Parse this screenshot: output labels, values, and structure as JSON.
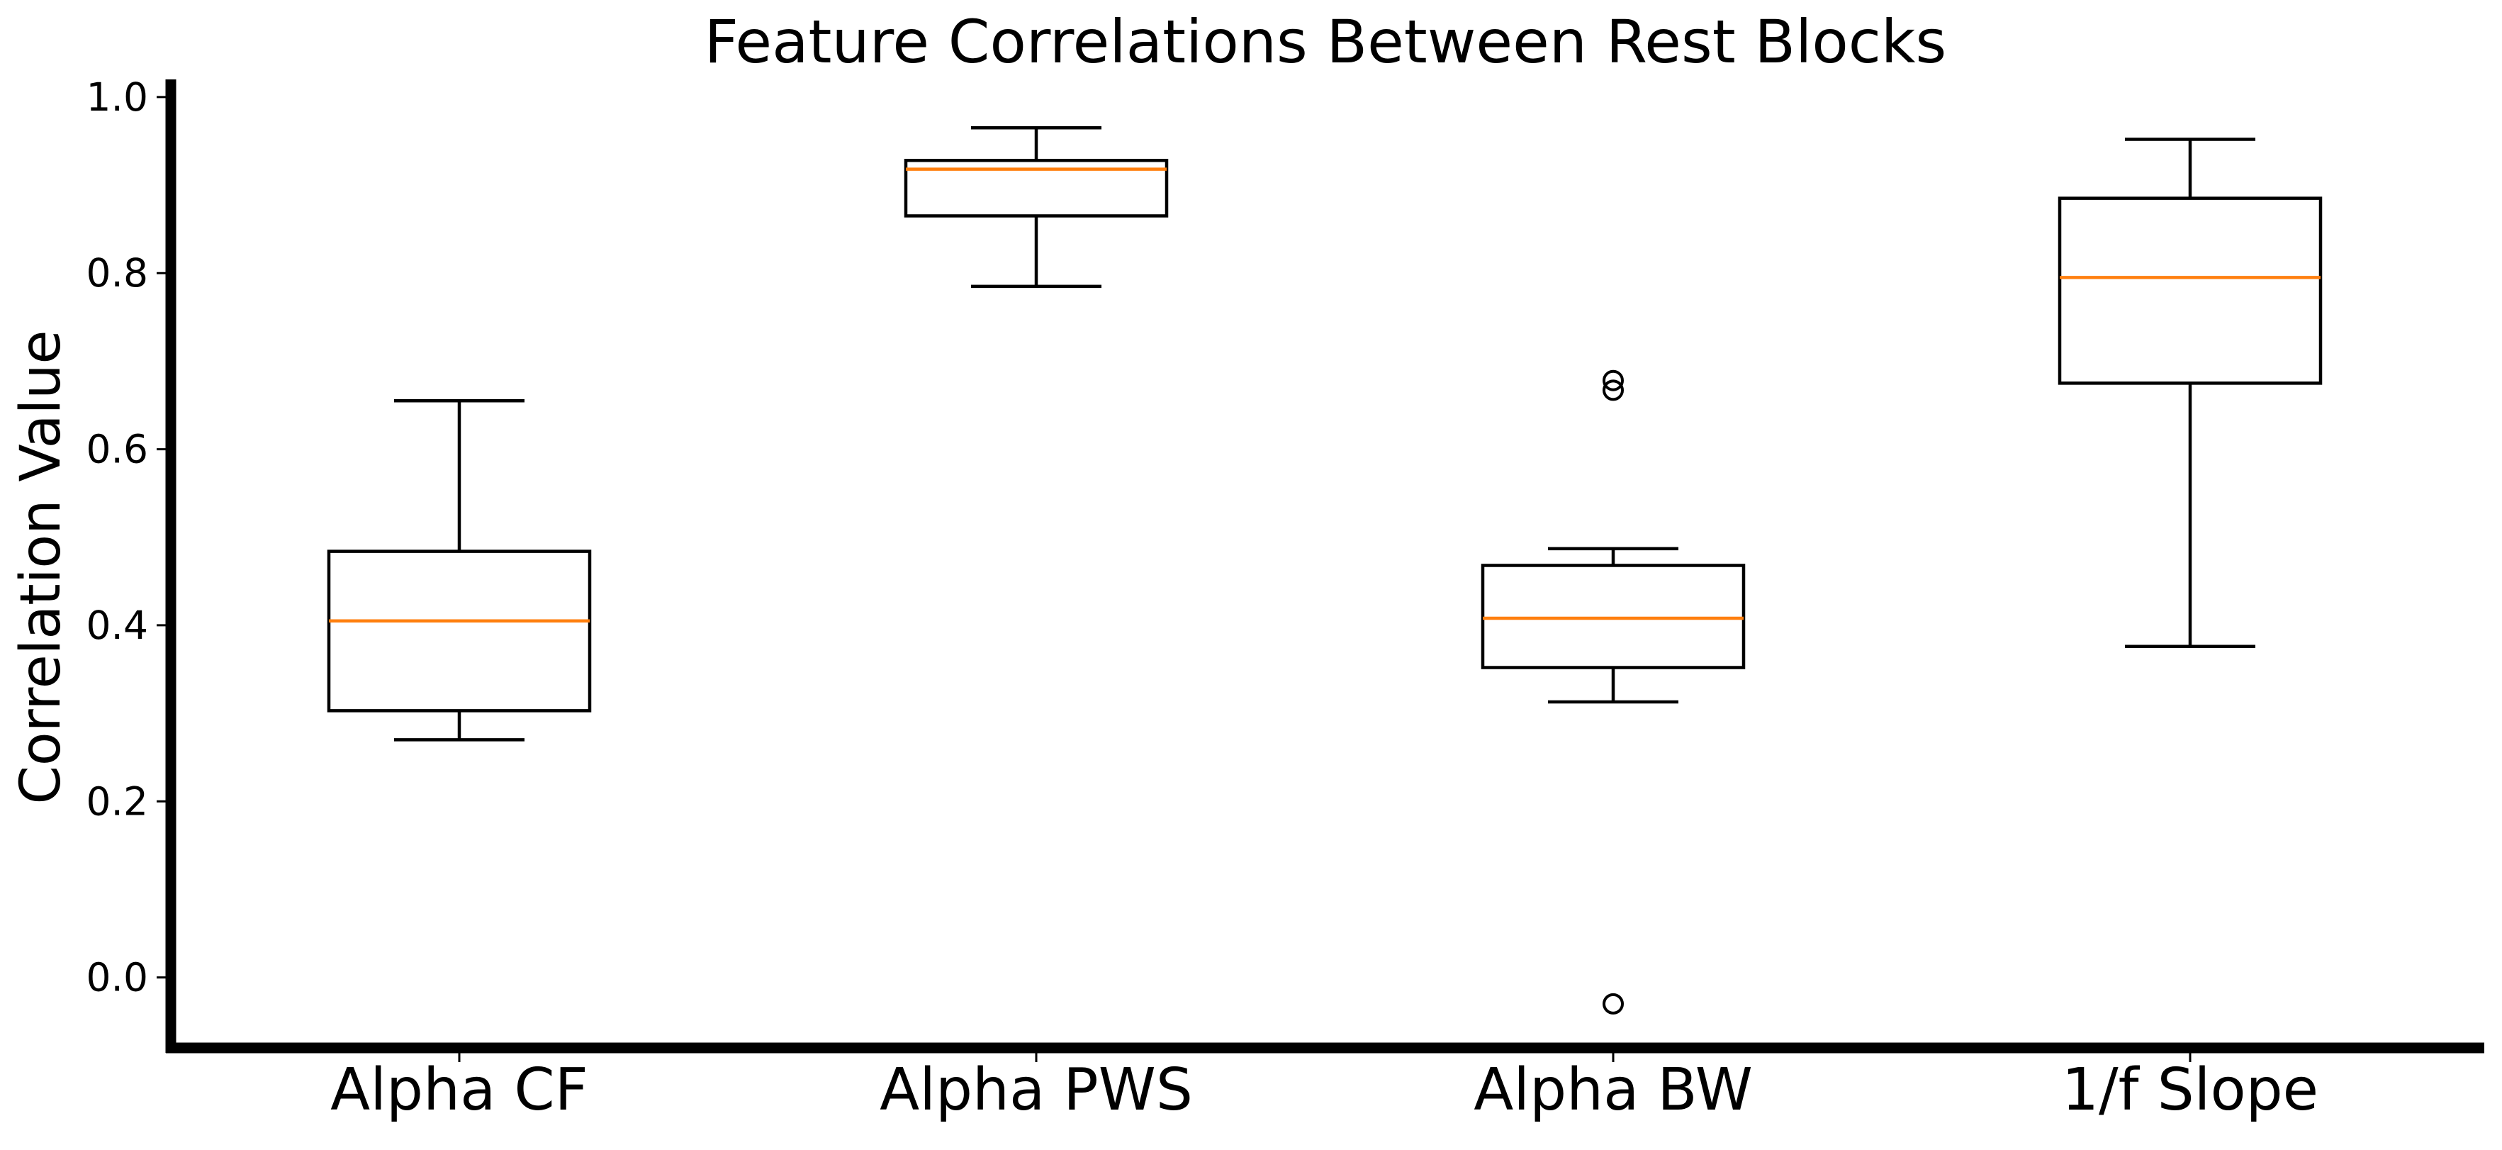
{
  "chart_data": {
    "type": "box",
    "title": "Feature Correlations Between Rest Blocks",
    "xlabel": "",
    "ylabel": "Correlation Value",
    "ylim": [
      -0.08,
      1.02
    ],
    "yticks": [
      0.0,
      0.2,
      0.4,
      0.6,
      0.8,
      1.0
    ],
    "ytick_labels": [
      "0.0",
      "0.2",
      "0.4",
      "0.6",
      "0.8",
      "1.0"
    ],
    "categories": [
      "Alpha CF",
      "Alpha PWS",
      "Alpha BW",
      "1/f Slope"
    ],
    "boxes": [
      {
        "category": "Alpha CF",
        "whisker_low": 0.27,
        "q1": 0.303,
        "median": 0.405,
        "q3": 0.484,
        "whisker_high": 0.655,
        "outliers": []
      },
      {
        "category": "Alpha PWS",
        "whisker_low": 0.785,
        "q1": 0.865,
        "median": 0.918,
        "q3": 0.928,
        "whisker_high": 0.965,
        "outliers": []
      },
      {
        "category": "Alpha BW",
        "whisker_low": 0.313,
        "q1": 0.352,
        "median": 0.408,
        "q3": 0.468,
        "whisker_high": 0.487,
        "outliers": [
          0.678,
          0.667,
          -0.03
        ]
      },
      {
        "category": "1/f Slope",
        "whisker_low": 0.376,
        "q1": 0.675,
        "median": 0.795,
        "q3": 0.885,
        "whisker_high": 0.952,
        "outliers": []
      }
    ],
    "grid": false,
    "legend": "none",
    "colors": {
      "box": "#000000",
      "median": "#ff7f0e",
      "axis": "#000000",
      "background": "#ffffff"
    }
  }
}
